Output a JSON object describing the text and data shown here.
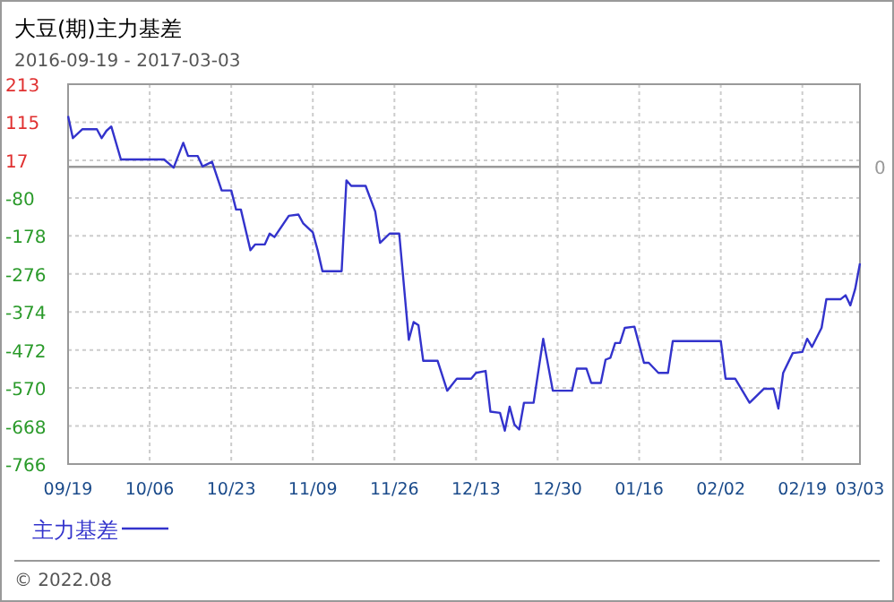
{
  "chart_data": {
    "type": "line",
    "title": "大豆(期)主力基差",
    "subtitle": "2016-09-19 - 2017-03-03",
    "x": [
      "2016-09-19",
      "2016-09-20",
      "2016-09-22",
      "2016-09-25",
      "2016-09-26",
      "2016-09-27",
      "2016-09-28",
      "2016-09-30",
      "2016-10-09",
      "2016-10-11",
      "2016-10-13",
      "2016-10-14",
      "2016-10-16",
      "2016-10-17",
      "2016-10-19",
      "2016-10-21",
      "2016-10-23",
      "2016-10-24",
      "2016-10-25",
      "2016-10-27",
      "2016-10-28",
      "2016-10-30",
      "2016-10-31",
      "2016-11-01",
      "2016-11-04",
      "2016-11-06",
      "2016-11-07",
      "2016-11-09",
      "2016-11-10",
      "2016-11-11",
      "2016-11-15",
      "2016-11-16",
      "2016-11-17",
      "2016-11-20",
      "2016-11-22",
      "2016-11-23",
      "2016-11-25",
      "2016-11-27",
      "2016-11-29",
      "2016-11-30",
      "2016-12-01",
      "2016-12-02",
      "2016-12-05",
      "2016-12-07",
      "2016-12-09",
      "2016-12-12",
      "2016-12-13",
      "2016-12-15",
      "2016-12-16",
      "2016-12-18",
      "2016-12-19",
      "2016-12-20",
      "2016-12-21",
      "2016-12-22",
      "2016-12-23",
      "2016-12-25",
      "2016-12-27",
      "2016-12-29",
      "2017-01-02",
      "2017-01-03",
      "2017-01-05",
      "2017-01-06",
      "2017-01-08",
      "2017-01-09",
      "2017-01-10",
      "2017-01-11",
      "2017-01-12",
      "2017-01-13",
      "2017-01-15",
      "2017-01-17",
      "2017-01-18",
      "2017-01-20",
      "2017-01-22",
      "2017-01-23",
      "2017-01-24",
      "2017-02-02",
      "2017-02-03",
      "2017-02-05",
      "2017-02-08",
      "2017-02-11",
      "2017-02-13",
      "2017-02-14",
      "2017-02-15",
      "2017-02-17",
      "2017-02-19",
      "2017-02-20",
      "2017-02-21",
      "2017-02-23",
      "2017-02-24",
      "2017-02-27",
      "2017-02-28",
      "2017-03-01",
      "2017-03-02",
      "2017-03-03"
    ],
    "series": [
      {
        "name": "主力基差",
        "color": "#3333cc",
        "values": [
          131,
          74,
          97,
          97,
          74,
          93,
          104,
          19,
          19,
          -2,
          62,
          28,
          28,
          1,
          13,
          -61,
          -61,
          -110,
          -110,
          -215,
          -200,
          -200,
          -172,
          -181,
          -126,
          -123,
          -146,
          -169,
          -215,
          -269,
          -269,
          -35,
          -49,
          -49,
          -115,
          -196,
          -172,
          -172,
          -446,
          -400,
          -408,
          -500,
          -500,
          -577,
          -546,
          -546,
          -531,
          -526,
          -631,
          -634,
          -680,
          -618,
          -664,
          -677,
          -608,
          -608,
          -443,
          -577,
          -577,
          -520,
          -520,
          -557,
          -557,
          -497,
          -492,
          -454,
          -454,
          -415,
          -412,
          -505,
          -505,
          -531,
          -531,
          -449,
          -449,
          -449,
          -546,
          -546,
          -608,
          -572,
          -572,
          -623,
          -531,
          -480,
          -477,
          -443,
          -464,
          -415,
          -341,
          -341,
          -331,
          -357,
          -315,
          -249
        ]
      }
    ],
    "xlim": [
      "2016-09-19",
      "2017-03-03"
    ],
    "xticks": [
      {
        "value": "2016-09-19",
        "label": "09/19"
      },
      {
        "value": "2016-10-06",
        "label": "10/06"
      },
      {
        "value": "2016-10-23",
        "label": "10/23"
      },
      {
        "value": "2016-11-09",
        "label": "11/09"
      },
      {
        "value": "2016-11-26",
        "label": "11/26"
      },
      {
        "value": "2016-12-13",
        "label": "12/13"
      },
      {
        "value": "2016-12-30",
        "label": "12/30"
      },
      {
        "value": "2017-01-16",
        "label": "01/16"
      },
      {
        "value": "2017-02-02",
        "label": "02/02"
      },
      {
        "value": "2017-02-19",
        "label": "02/19"
      },
      {
        "value": "2017-03-03",
        "label": "03/03"
      }
    ],
    "ylim": [
      -766,
      213
    ],
    "yticks": [
      213,
      115,
      17,
      -80,
      -178,
      -276,
      -374,
      -472,
      -570,
      -668,
      -766
    ],
    "ref_lines": [
      {
        "axis": "y",
        "value": 0,
        "label": "0",
        "color": "#999999"
      }
    ],
    "grid": true,
    "legend": "bottom left",
    "line_style": "solid",
    "marker": "none",
    "annotations": [
      "© 2022.08"
    ]
  }
}
